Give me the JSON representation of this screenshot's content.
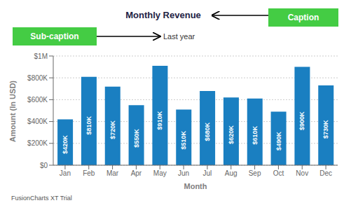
{
  "chart_data": {
    "type": "bar",
    "title": "Monthly Revenue",
    "subtitle": "Last year",
    "x_label": "Month",
    "y_label": "Amount (In USD)",
    "categories": [
      "Jan",
      "Feb",
      "Mar",
      "Apr",
      "May",
      "Jun",
      "Jul",
      "Aug",
      "Sep",
      "Oct",
      "Nov",
      "Dec"
    ],
    "values": [
      420000,
      810000,
      720000,
      550000,
      910000,
      510000,
      680000,
      620000,
      610000,
      490000,
      900000,
      730000
    ],
    "value_labels": [
      "$420K",
      "$810K",
      "$720K",
      "$550K",
      "$910K",
      "$510K",
      "$680K",
      "$620K",
      "$610K",
      "$490K",
      "$900K",
      "$730K"
    ],
    "data_labels": true,
    "color": "#1a7fc1",
    "ylim": [
      0,
      1000000
    ],
    "yticks": [
      {
        "value": 0,
        "label": "$0"
      },
      {
        "value": 200000,
        "label": "$200K"
      },
      {
        "value": 400000,
        "label": "$400K"
      },
      {
        "value": 600000,
        "label": "$600K"
      },
      {
        "value": 800000,
        "label": "$800K"
      },
      {
        "value": 1000000,
        "label": "$1M"
      }
    ],
    "grid": true,
    "annotations": [
      {
        "text": "Caption",
        "color": "#44cc44"
      },
      {
        "text": "Sub-caption",
        "color": "#44cc44"
      },
      {
        "text": "FusionCharts XT Trial"
      }
    ]
  }
}
